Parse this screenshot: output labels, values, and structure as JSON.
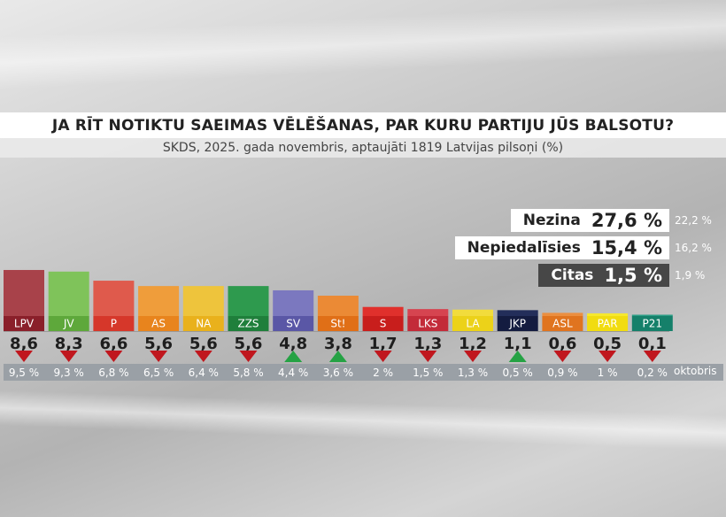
{
  "header": {
    "title": "JA RĪT NOTIKTU SAEIMAS VĒLĒŠANAS, PAR KURU PARTIJU JŪS BALSOTU?",
    "subtitle": "SKDS, 2025. gada novembris, aptaujāti 1819 Latvijas pilsoņi (%)"
  },
  "summary": [
    {
      "label": "Nezina",
      "value": "27,6 %",
      "previous": "22,2 %",
      "style": "light"
    },
    {
      "label": "Nepiedalīsies",
      "value": "15,4 %",
      "previous": "16,2 %",
      "style": "light"
    },
    {
      "label": "Citas",
      "value": "1,5 %",
      "previous": "1,9 %",
      "style": "dark"
    }
  ],
  "previous_label": "oktobris",
  "chart_data": {
    "type": "bar",
    "categories": [
      "LPV",
      "JV",
      "P",
      "AS",
      "NA",
      "ZZS",
      "SV",
      "St!",
      "S",
      "LKS",
      "LA",
      "JKP",
      "ASL",
      "PAR",
      "P21"
    ],
    "values": [
      8.6,
      8.3,
      6.6,
      5.6,
      5.6,
      5.6,
      4.8,
      3.8,
      1.7,
      1.3,
      1.2,
      1.1,
      0.6,
      0.5,
      0.1
    ],
    "value_labels": [
      "8,6",
      "8,3",
      "6,6",
      "5,6",
      "5,6",
      "5,6",
      "4,8",
      "3,8",
      "1,7",
      "1,3",
      "1,2",
      "1,1",
      "0,6",
      "0,5",
      "0,1"
    ],
    "previous_values": [
      9.5,
      9.3,
      6.8,
      6.5,
      6.4,
      5.8,
      4.4,
      3.6,
      2,
      1.5,
      1.3,
      0.5,
      0.9,
      1,
      0.2
    ],
    "previous_labels": [
      "9,5 %",
      "9,3 %",
      "6,8 %",
      "6,5 %",
      "6,4 %",
      "5,8 %",
      "4,4 %",
      "3,6 %",
      "2 %",
      "1,5 %",
      "1,3 %",
      "0,5 %",
      "0,9 %",
      "1 %",
      "0,2 %"
    ],
    "trend": [
      "down",
      "down",
      "down",
      "down",
      "down",
      "down",
      "up",
      "up",
      "down",
      "down",
      "down",
      "up",
      "down",
      "down",
      "down"
    ],
    "colors": [
      "#a8424a",
      "#7fc35a",
      "#df5a4c",
      "#ef9d3b",
      "#eec43c",
      "#2e9a4e",
      "#7b78bf",
      "#eb8a35",
      "#e0302c",
      "#d64450",
      "#f2dc3c",
      "#232e5a",
      "#eb8f40",
      "#f6e82e",
      "#2a9d85"
    ],
    "label_colors": [
      "#8a1f2a",
      "#5ea83b",
      "#d6372a",
      "#e8841d",
      "#e9b11c",
      "#1f7f3b",
      "#5a57a6",
      "#e06f17",
      "#c81e1c",
      "#c32b39",
      "#ecd219",
      "#141c40",
      "#e0741f",
      "#f1dc10",
      "#15806a"
    ],
    "trend_colors": {
      "up": "#25a244",
      "down": "#c0171e"
    }
  }
}
